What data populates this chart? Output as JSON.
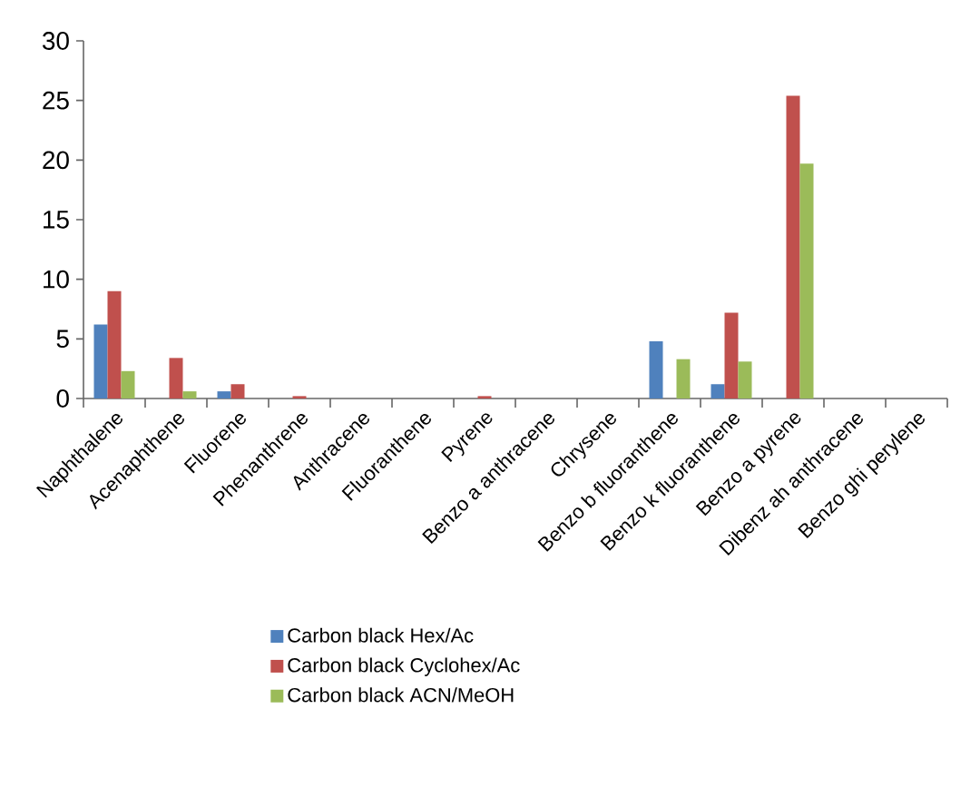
{
  "chart_data": {
    "type": "bar",
    "categories": [
      "Naphthalene",
      "Acenaphthene",
      "Fluorene",
      "Phenanthrene",
      "Anthracene",
      "Fluoranthene",
      "Pyrene",
      "Benzo a anthracene",
      "Chrysene",
      "Benzo b fluoranthene",
      "Benzo k fluoranthene",
      "Benzo a pyrene",
      "Dibenz ah anthracene",
      "Benzo ghi perylene"
    ],
    "series": [
      {
        "name": "Carbon black Hex/Ac",
        "color": "#4f81bd",
        "values": [
          6.2,
          0,
          0.6,
          0,
          0,
          0,
          0,
          0,
          0,
          4.8,
          1.2,
          0,
          0,
          0
        ]
      },
      {
        "name": "Carbon black Cyclohex/Ac",
        "color": "#c0504d",
        "values": [
          9.0,
          3.4,
          1.2,
          0.2,
          0,
          0,
          0.2,
          0,
          0,
          0,
          7.2,
          25.4,
          0,
          0
        ]
      },
      {
        "name": "Carbon black ACN/MeOH",
        "color": "#9bbb59",
        "values": [
          2.3,
          0.6,
          0,
          0,
          0,
          0,
          0,
          0,
          0,
          3.3,
          3.1,
          19.7,
          0,
          0
        ]
      }
    ],
    "ylim": [
      0,
      30
    ],
    "yticks": [
      0,
      5,
      10,
      15,
      20,
      25,
      30
    ],
    "grid": false,
    "legend": "bottom"
  }
}
